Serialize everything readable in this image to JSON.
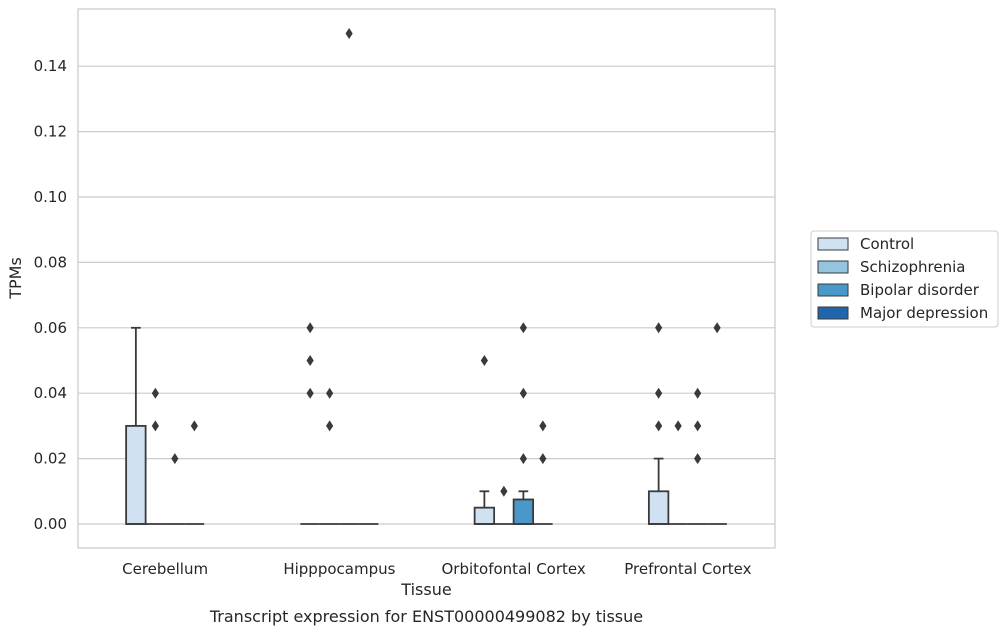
{
  "chart_data": {
    "type": "box",
    "xlabel": "Tissue",
    "ylabel": "TPMs",
    "caption": "Transcript expression for ENST00000499082 by tissue",
    "ylim": [
      -0.0075,
      0.1575
    ],
    "yticks": [
      "0.00",
      "0.02",
      "0.04",
      "0.06",
      "0.08",
      "0.10",
      "0.12",
      "0.14"
    ],
    "grid": true,
    "legend_position": "right",
    "categories": [
      "Cerebellum",
      "Hipppocampus",
      "Orbitofontal Cortex",
      "Prefrontal Cortex"
    ],
    "series": [
      {
        "name": "Control",
        "color": "#d0e1f2",
        "boxes": [
          {
            "q1": 0,
            "median": 0,
            "q3": 0.03,
            "whisker_low": 0,
            "whisker_high": 0.06,
            "outliers": []
          },
          {
            "q1": 0,
            "median": 0,
            "q3": 0,
            "whisker_low": 0,
            "whisker_high": 0,
            "outliers": [
              0.04,
              0.05,
              0.06
            ]
          },
          {
            "q1": 0,
            "median": 0,
            "q3": 0.005,
            "whisker_low": 0,
            "whisker_high": 0.01,
            "outliers": [
              0.05
            ]
          },
          {
            "q1": 0,
            "median": 0,
            "q3": 0.01,
            "whisker_low": 0,
            "whisker_high": 0.02,
            "outliers": [
              0.03,
              0.04,
              0.06
            ]
          }
        ]
      },
      {
        "name": "Schizophrenia",
        "color": "#94c4df",
        "boxes": [
          {
            "q1": 0,
            "median": 0,
            "q3": 0,
            "whisker_low": 0,
            "whisker_high": 0,
            "outliers": [
              0.03,
              0.04
            ]
          },
          {
            "q1": 0,
            "median": 0,
            "q3": 0,
            "whisker_low": 0,
            "whisker_high": 0,
            "outliers": [
              0.03,
              0.04
            ]
          },
          {
            "q1": 0,
            "median": 0,
            "q3": 0,
            "whisker_low": 0,
            "whisker_high": 0,
            "outliers": [
              0.01
            ]
          },
          {
            "q1": 0,
            "median": 0,
            "q3": 0,
            "whisker_low": 0,
            "whisker_high": 0,
            "outliers": [
              0.03
            ]
          }
        ]
      },
      {
        "name": "Bipolar disorder",
        "color": "#4a98c9",
        "boxes": [
          {
            "q1": 0,
            "median": 0,
            "q3": 0,
            "whisker_low": 0,
            "whisker_high": 0,
            "outliers": [
              0.02
            ]
          },
          {
            "q1": 0,
            "median": 0,
            "q3": 0,
            "whisker_low": 0,
            "whisker_high": 0,
            "outliers": [
              0.15
            ]
          },
          {
            "q1": 0,
            "median": 0,
            "q3": 0.0075,
            "whisker_low": 0,
            "whisker_high": 0.01,
            "outliers": [
              0.02,
              0.04,
              0.06
            ]
          },
          {
            "q1": 0,
            "median": 0,
            "q3": 0,
            "whisker_low": 0,
            "whisker_high": 0,
            "outliers": [
              0.02,
              0.03,
              0.04
            ]
          }
        ]
      },
      {
        "name": "Major depression",
        "color": "#2166ac",
        "boxes": [
          {
            "q1": 0,
            "median": 0,
            "q3": 0,
            "whisker_low": 0,
            "whisker_high": 0,
            "outliers": [
              0.03
            ]
          },
          {
            "q1": 0,
            "median": 0,
            "q3": 0,
            "whisker_low": 0,
            "whisker_high": 0,
            "outliers": []
          },
          {
            "q1": 0,
            "median": 0,
            "q3": 0,
            "whisker_low": 0,
            "whisker_high": 0,
            "outliers": [
              0.02,
              0.03
            ]
          },
          {
            "q1": 0,
            "median": 0,
            "q3": 0,
            "whisker_low": 0,
            "whisker_high": 0,
            "outliers": [
              0.06
            ]
          }
        ]
      }
    ]
  }
}
